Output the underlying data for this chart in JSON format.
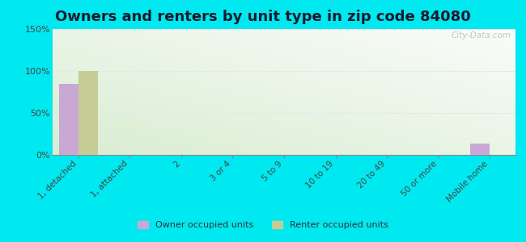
{
  "title": "Owners and renters by unit type in zip code 84080",
  "categories": [
    "1, detached",
    "1, attached",
    "2",
    "3 or 4",
    "5 to 9",
    "10 to 19",
    "20 to 49",
    "50 or more",
    "Mobile home"
  ],
  "owner_values": [
    85,
    0,
    0,
    0,
    0,
    0,
    0,
    0,
    13
  ],
  "renter_values": [
    100,
    0,
    0,
    0,
    0,
    0,
    0,
    0,
    0
  ],
  "owner_color": "#c9a8d4",
  "renter_color": "#c5cc96",
  "ylim": [
    0,
    150
  ],
  "yticks": [
    0,
    50,
    100,
    150
  ],
  "ytick_labels": [
    "0%",
    "50%",
    "100%",
    "150%"
  ],
  "outer_background": "#00e8f0",
  "title_fontsize": 13,
  "watermark": "City-Data.com",
  "legend_owner": "Owner occupied units",
  "legend_renter": "Renter occupied units",
  "grid_color": "#e8e8e8"
}
